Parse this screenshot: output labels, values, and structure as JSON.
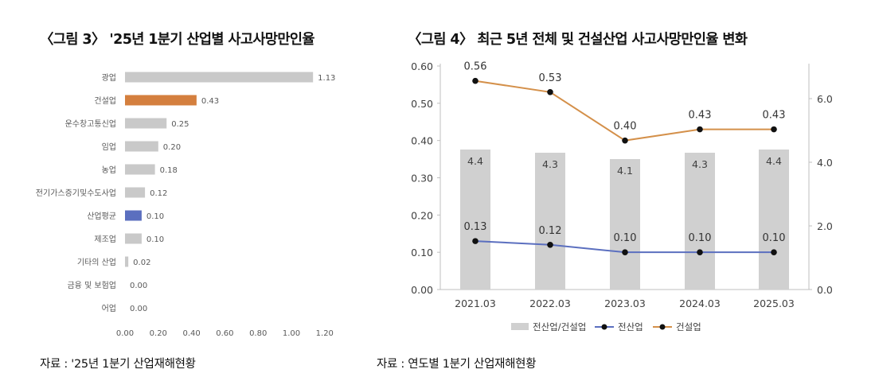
{
  "chart_data": [
    {
      "type": "bar",
      "orientation": "horizontal",
      "title": "〈그림 3〉 '25년 1분기 산업별 사고사망만인율",
      "categories": [
        "광업",
        "건설업",
        "운수창고통신업",
        "임업",
        "농업",
        "전기가스증기및수도사업",
        "산업평균",
        "제조업",
        "기타의 산업",
        "금융 및 보험업",
        "어업"
      ],
      "values": [
        1.13,
        0.43,
        0.25,
        0.2,
        0.18,
        0.12,
        0.1,
        0.1,
        0.02,
        0.0,
        0.0
      ],
      "value_labels": [
        "1.13",
        "0.43",
        "0.25",
        "0.20",
        "0.18",
        "0.12",
        "0.10",
        "0.10",
        "0.02",
        "0.00",
        "0.00"
      ],
      "highlight": {
        "건설업": "#d47f3e",
        "산업평균": "#5b6fbf"
      },
      "bar_color": "#c9c9c9",
      "xlim": [
        0,
        1.2
      ],
      "xticks": [
        "0.00",
        "0.20",
        "0.40",
        "0.60",
        "0.80",
        "1.00",
        "1.20"
      ],
      "grid": false,
      "source": "자료 : '25년 1분기 산업재해현황"
    },
    {
      "type": "bar+line",
      "title": "〈그림 4〉 최근 5년 전체 및 건설산업 사고사망만인율 변화",
      "categories": [
        "2021.03",
        "2022.03",
        "2023.03",
        "2024.03",
        "2025.03"
      ],
      "bar_series": {
        "name": "전산업/건설업",
        "values": [
          4.4,
          4.3,
          4.1,
          4.3,
          4.4
        ],
        "labels": [
          "4.4",
          "4.3",
          "4.1",
          "4.3",
          "4.4"
        ],
        "color": "#d0d0d0",
        "axis": "right"
      },
      "line_series": [
        {
          "name": "전산업",
          "values": [
            0.13,
            0.12,
            0.1,
            0.1,
            0.1
          ],
          "labels": [
            "0.13",
            "0.12",
            "0.10",
            "0.10",
            "0.10"
          ],
          "color": "#5b6fbf",
          "axis": "left"
        },
        {
          "name": "건설업",
          "values": [
            0.56,
            0.53,
            0.4,
            0.43,
            0.43
          ],
          "labels": [
            "0.56",
            "0.53",
            "0.40",
            "0.43",
            "0.43"
          ],
          "color": "#d4904a",
          "axis": "left"
        }
      ],
      "ylim_left": [
        0,
        0.6
      ],
      "yticks_left": [
        "0.00",
        "0.10",
        "0.20",
        "0.30",
        "0.40",
        "0.50",
        "0.60"
      ],
      "ylim_right": [
        0,
        6.8
      ],
      "yticks_right": [
        "0.0",
        "2.0",
        "4.0",
        "6.0"
      ],
      "legend_position": "bottom",
      "grid": false,
      "source": "자료 : 연도별 1분기 산업재해현황"
    }
  ]
}
